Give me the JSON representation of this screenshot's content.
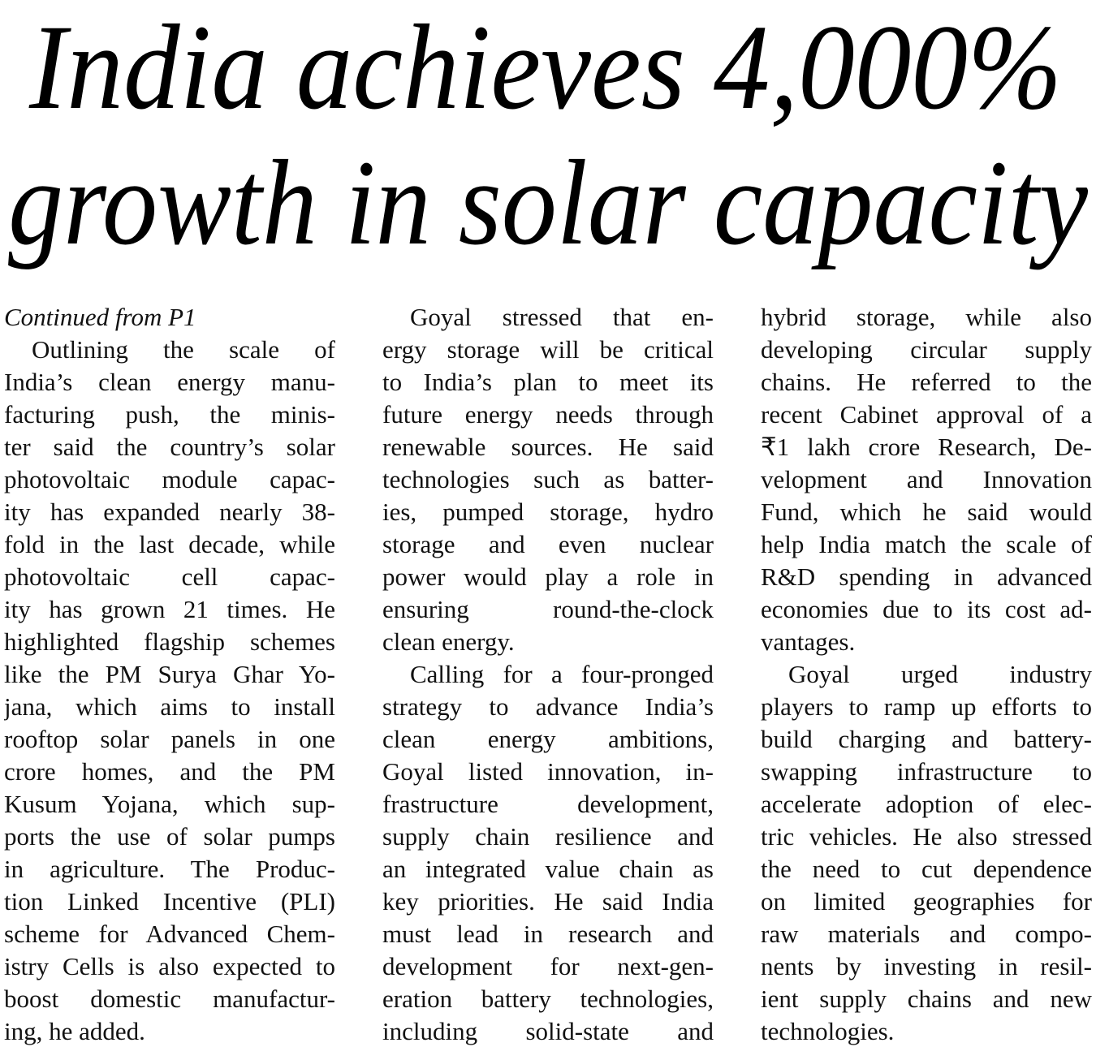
{
  "headline": {
    "lines": [
      "India achieves 4,000%",
      "growth in solar capacity"
    ]
  },
  "kicker": "Continued from P1",
  "columns": [
    {
      "paragraphs": [
        {
          "lines": [
            "Outlining the scale of",
            "India’s clean energy manu-",
            "facturing push, the minis-",
            "ter said the country’s solar",
            "photovoltaic module capac-",
            "ity has expanded nearly 38-",
            "fold in the last decade, while",
            "photovoltaic cell capac-",
            "ity has grown 21 times. He",
            "highlighted flagship schemes",
            "like the PM Surya Ghar Yo-",
            "jana, which aims to install",
            "rooftop solar panels in one",
            "crore homes, and the PM",
            "Kusum Yojana, which sup-",
            "ports the use of solar pumps",
            "in agriculture. The Produc-",
            "tion Linked Incentive (PLI)",
            "scheme for Advanced Chem-",
            "istry Cells is also expected to",
            "boost domestic manufactur-",
            "ing, he added."
          ]
        }
      ]
    },
    {
      "paragraphs": [
        {
          "lines": [
            "Goyal stressed that en-",
            "ergy storage will be critical",
            "to India’s plan to meet its",
            "future energy needs through",
            "renewable sources. He said",
            "technologies such as batter-",
            "ies, pumped storage, hydro",
            "storage and even nuclear",
            "power would play a role in",
            "ensuring round-the-clock",
            "clean energy."
          ]
        },
        {
          "lines": [
            "Calling for a four-pronged",
            "strategy to advance India’s",
            "clean energy ambitions,",
            "Goyal listed innovation, in-",
            "frastructure development,",
            "supply chain resilience and",
            "an integrated value chain as",
            "key priorities. He said India",
            "must lead in research and",
            "development for next-gen-",
            "eration battery technologies,",
            "including solid-state and"
          ]
        }
      ]
    },
    {
      "paragraphs": [
        {
          "lines": [
            "hybrid storage, while also",
            "developing circular supply",
            "chains. He referred to the",
            "recent Cabinet approval of a",
            "₹1 lakh crore Research, De-",
            "velopment and Innovation",
            "Fund, which he said would",
            "help India match the scale of",
            "R&D spending in advanced",
            "economies due to its cost ad-",
            "vantages."
          ]
        },
        {
          "lines": [
            "Goyal urged industry",
            "players to ramp up efforts to",
            "build charging and battery-",
            "swapping infrastructure to",
            "accelerate adoption of elec-",
            "tric vehicles. He also stressed",
            "the need to cut dependence",
            "on limited geographies for",
            "raw materials and compo-",
            "nents by investing in resil-",
            "ient supply chains and new",
            "technologies."
          ]
        }
      ]
    }
  ]
}
